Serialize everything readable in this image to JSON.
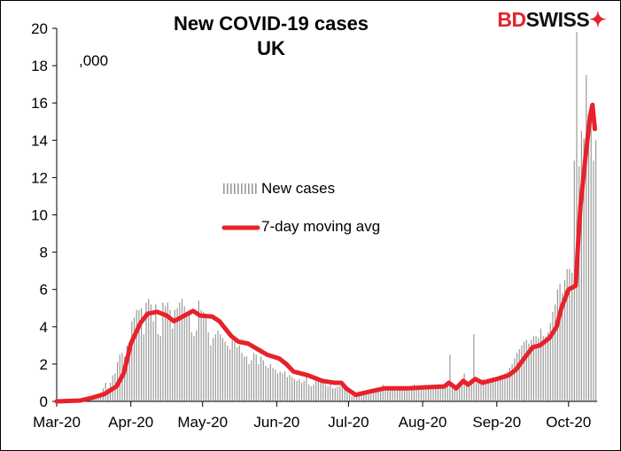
{
  "chart_data": {
    "type": "bar+line",
    "title": "New COVID-19 cases",
    "subtitle": "UK",
    "unit_label": ",000",
    "xlabel": "",
    "ylabel": "",
    "ylim": [
      0,
      20
    ],
    "yticks": [
      "0",
      "2",
      "4",
      "6",
      "8",
      "10",
      "12",
      "14",
      "16",
      "18",
      "20"
    ],
    "xticks": [
      {
        "label": "Mar-20",
        "day": 0
      },
      {
        "label": "Apr-20",
        "day": 31
      },
      {
        "label": "May-20",
        "day": 61
      },
      {
        "label": "Jun-20",
        "day": 92
      },
      {
        "label": "Jul-20",
        "day": 122
      },
      {
        "label": "Aug-20",
        "day": 153
      },
      {
        "label": "Sep-20",
        "day": 184
      },
      {
        "label": "Oct-20",
        "day": 214
      }
    ],
    "start_date": "2020-03-01",
    "legend": {
      "position": "center",
      "entries": [
        "New cases",
        "7-day moving avg"
      ]
    },
    "colors": {
      "bars": "#999999",
      "line": "#e8212a"
    },
    "series": [
      {
        "name": "New cases",
        "type": "bar",
        "values": [
          0,
          0,
          0,
          0,
          0,
          0,
          0,
          0,
          0.05,
          0.05,
          0.1,
          0.1,
          0.1,
          0.2,
          0.2,
          0.2,
          0.3,
          0.4,
          0.4,
          0.7,
          1.0,
          0.7,
          1.0,
          1.4,
          1.5,
          2.1,
          2.5,
          2.6,
          2.4,
          3.0,
          3.0,
          4.3,
          4.5,
          4.9,
          4.9,
          5.0,
          3.6,
          5.3,
          5.5,
          5.2,
          4.3,
          5.2,
          3.6,
          3.5,
          5.3,
          5.1,
          5.3,
          4.9,
          3.9,
          4.9,
          5.0,
          5.3,
          5.5,
          5.1,
          4.8,
          4.9,
          3.7,
          3.5,
          3.8,
          5.4,
          4.9,
          4.8,
          4.5,
          3.7,
          3.0,
          3.4,
          3.6,
          3.8,
          3.6,
          3.4,
          3.2,
          3.0,
          2.8,
          3.3,
          3.2,
          2.9,
          3.0,
          2.6,
          2.4,
          2.4,
          2.0,
          2.2,
          2.6,
          2.5,
          2.0,
          2.4,
          2.2,
          1.9,
          1.8,
          2.0,
          1.8,
          1.7,
          1.5,
          1.6,
          1.5,
          1.6,
          1.3,
          1.4,
          1.3,
          1.2,
          1.1,
          1.2,
          1.0,
          1.1,
          1.3,
          0.9,
          0.8,
          0.9,
          1.1,
          1.2,
          1.0,
          1.0,
          0.9,
          0.8,
          0.9,
          0.7,
          0.7,
          0.8,
          0.8,
          0.9,
          0.8,
          0.7,
          0.4,
          0.3,
          0.3,
          0.3,
          0.4,
          0.4,
          0.5,
          0.5,
          0.6,
          0.6,
          0.6,
          0.7,
          0.7,
          0.6,
          0.9,
          0.7,
          0.7,
          0.8,
          0.8,
          0.7,
          0.8,
          0.8,
          0.8,
          0.7,
          0.8,
          0.8,
          0.7,
          0.9,
          0.8,
          0.8,
          0.8,
          0.7,
          0.7,
          0.7,
          0.8,
          0.9,
          0.9,
          0.9,
          0.8,
          0.8,
          0.8,
          0.9,
          2.5,
          1.0,
          0.9,
          0.9,
          0.8,
          0.9,
          1.5,
          1.0,
          1.0,
          1.2,
          3.6,
          1.0,
          1.0,
          1.1,
          1.2,
          1.1,
          1.1,
          1.2,
          1.3,
          1.2,
          1.3,
          1.3,
          1.4,
          1.5,
          1.6,
          1.8,
          2.0,
          2.3,
          2.6,
          2.8,
          3.0,
          3.2,
          3.3,
          3.1,
          3.3,
          3.5,
          3.5,
          3.4,
          3.9,
          3.5,
          3.5,
          3.7,
          4.2,
          4.8,
          5.2,
          6.0,
          6.3,
          5.8,
          6.5,
          7.1,
          7.1,
          6.9,
          12.9,
          19.8,
          12.6,
          14.5,
          14.1,
          17.5,
          13.8,
          15.2,
          12.9,
          14.0
        ]
      },
      {
        "name": "7-day moving avg",
        "type": "line",
        "points": [
          [
            0,
            0
          ],
          [
            10,
            0.05
          ],
          [
            15,
            0.2
          ],
          [
            20,
            0.4
          ],
          [
            25,
            0.8
          ],
          [
            28,
            1.5
          ],
          [
            31,
            3.1
          ],
          [
            35,
            4.2
          ],
          [
            38,
            4.7
          ],
          [
            42,
            4.8
          ],
          [
            46,
            4.6
          ],
          [
            49,
            4.3
          ],
          [
            52,
            4.5
          ],
          [
            57,
            4.85
          ],
          [
            60,
            4.6
          ],
          [
            65,
            4.55
          ],
          [
            68,
            4.3
          ],
          [
            73,
            3.5
          ],
          [
            76,
            3.2
          ],
          [
            80,
            3.1
          ],
          [
            84,
            2.8
          ],
          [
            88,
            2.5
          ],
          [
            93,
            2.3
          ],
          [
            96,
            2.0
          ],
          [
            99,
            1.6
          ],
          [
            105,
            1.4
          ],
          [
            111,
            1.1
          ],
          [
            116,
            1.0
          ],
          [
            119,
            1.0
          ],
          [
            121,
            0.7
          ],
          [
            125,
            0.35
          ],
          [
            130,
            0.5
          ],
          [
            137,
            0.7
          ],
          [
            147,
            0.7
          ],
          [
            153,
            0.75
          ],
          [
            162,
            0.8
          ],
          [
            164,
            1.0
          ],
          [
            167,
            0.7
          ],
          [
            170,
            1.1
          ],
          [
            172,
            0.9
          ],
          [
            175,
            1.2
          ],
          [
            178,
            1.0
          ],
          [
            181,
            1.1
          ],
          [
            184,
            1.2
          ],
          [
            189,
            1.4
          ],
          [
            192,
            1.7
          ],
          [
            196,
            2.4
          ],
          [
            199,
            2.9
          ],
          [
            202,
            3.0
          ],
          [
            206,
            3.4
          ],
          [
            209,
            4.0
          ],
          [
            211,
            5.0
          ],
          [
            214,
            6.0
          ],
          [
            217,
            6.2
          ],
          [
            218,
            8.5
          ],
          [
            219,
            10.5
          ],
          [
            221,
            13.0
          ],
          [
            223,
            15.3
          ],
          [
            224,
            15.9
          ],
          [
            225,
            14.6
          ]
        ]
      }
    ]
  },
  "logo": {
    "part1": "BD",
    "part2": "SWISS"
  }
}
